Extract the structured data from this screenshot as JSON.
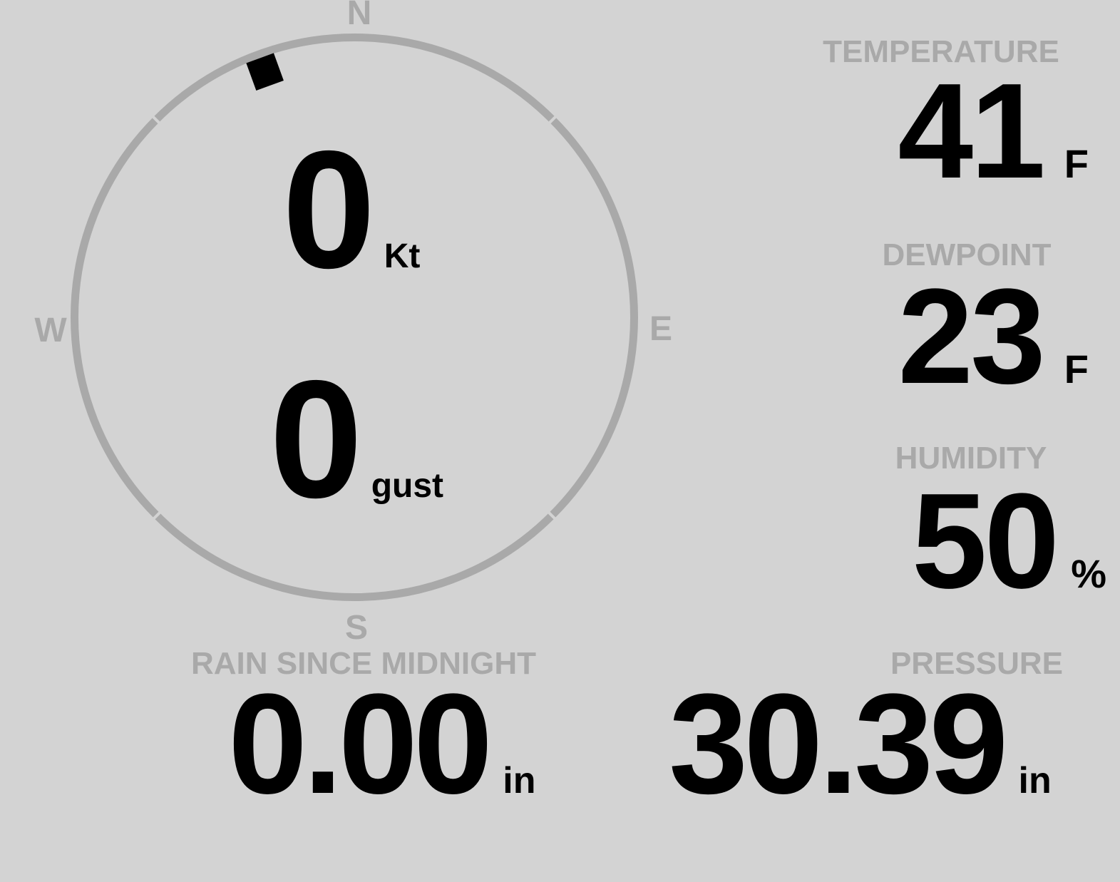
{
  "theme": {
    "background": "#d3d3d3",
    "muted_gray": "#a9a9a9",
    "value_black": "#000000"
  },
  "compass": {
    "cardinals": {
      "north": "N",
      "east": "E",
      "south": "S",
      "west": "W"
    },
    "wind_direction_deg": 340,
    "wind_speed": {
      "value": "0",
      "unit": "Kt"
    },
    "wind_gust": {
      "value": "0",
      "unit": "gust"
    }
  },
  "metrics": {
    "temperature": {
      "label": "TEMPERATURE",
      "value": "41",
      "unit": "F"
    },
    "dewpoint": {
      "label": "DEWPOINT",
      "value": "23",
      "unit": "F"
    },
    "humidity": {
      "label": "HUMIDITY",
      "value": "50",
      "unit": "%"
    },
    "rain": {
      "label": "RAIN SINCE MIDNIGHT",
      "value": "0.00",
      "unit": "in"
    },
    "pressure": {
      "label": "PRESSURE",
      "value": "30.39",
      "unit": "in"
    }
  }
}
